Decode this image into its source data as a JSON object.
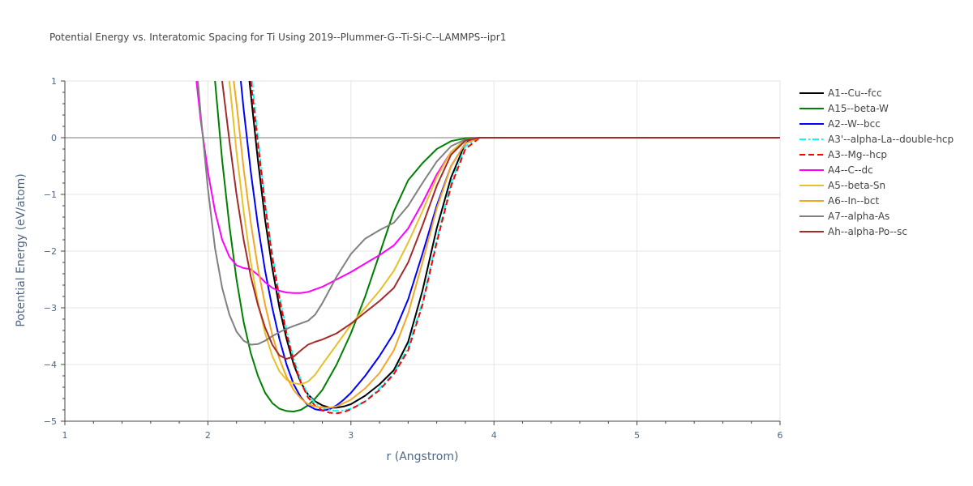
{
  "chart_data": {
    "type": "line",
    "title": "Potential Energy vs. Interatomic Spacing for Ti Using 2019--Plummer-G--Ti-Si-C--LAMMPS--ipr1",
    "xlabel": "r (Angstrom)",
    "ylabel": "Potential Energy (eV/atom)",
    "xlim": [
      1,
      6
    ],
    "ylim": [
      -5,
      1
    ],
    "x_ticks": [
      "1",
      "2",
      "3",
      "4",
      "5",
      "6"
    ],
    "y_ticks": [
      "1",
      "0",
      "−1",
      "−2",
      "−3",
      "−4",
      "−5"
    ],
    "grid": true,
    "legend_position": "right",
    "series": [
      {
        "name": "A1--Cu--fcc",
        "color": "#000000",
        "dash": "solid",
        "x": [
          2.29,
          2.35,
          2.4,
          2.45,
          2.5,
          2.55,
          2.6,
          2.65,
          2.7,
          2.75,
          2.8,
          2.85,
          2.9,
          2.95,
          3.0,
          3.1,
          3.2,
          3.3,
          3.4,
          3.5,
          3.6,
          3.7,
          3.8,
          3.85,
          3.9,
          4.0,
          5.0,
          6.0
        ],
        "y": [
          1.0,
          -0.4,
          -1.45,
          -2.3,
          -3.0,
          -3.55,
          -4.0,
          -4.32,
          -4.53,
          -4.65,
          -4.72,
          -4.76,
          -4.76,
          -4.74,
          -4.7,
          -4.55,
          -4.35,
          -4.1,
          -3.6,
          -2.7,
          -1.6,
          -0.7,
          -0.1,
          -0.02,
          0.0,
          0.0,
          0.0,
          0.0
        ]
      },
      {
        "name": "A15--beta-W",
        "color": "#008000",
        "dash": "solid",
        "x": [
          2.05,
          2.1,
          2.15,
          2.2,
          2.25,
          2.3,
          2.35,
          2.4,
          2.45,
          2.5,
          2.55,
          2.6,
          2.65,
          2.7,
          2.75,
          2.8,
          2.9,
          3.0,
          3.1,
          3.2,
          3.3,
          3.4,
          3.5,
          3.6,
          3.7,
          3.8,
          3.9,
          4.0,
          5.0,
          6.0
        ],
        "y": [
          1.0,
          -0.4,
          -1.55,
          -2.5,
          -3.25,
          -3.8,
          -4.2,
          -4.5,
          -4.68,
          -4.78,
          -4.82,
          -4.83,
          -4.8,
          -4.72,
          -4.6,
          -4.45,
          -4.0,
          -3.45,
          -2.8,
          -2.05,
          -1.3,
          -0.75,
          -0.45,
          -0.2,
          -0.06,
          -0.01,
          0.0,
          0.0,
          0.0,
          0.0
        ]
      },
      {
        "name": "A2--W--bcc",
        "color": "#0000ff",
        "dash": "solid",
        "x": [
          2.23,
          2.25,
          2.3,
          2.35,
          2.4,
          2.45,
          2.5,
          2.55,
          2.6,
          2.65,
          2.7,
          2.75,
          2.8,
          2.85,
          2.9,
          2.95,
          3.0,
          3.1,
          3.2,
          3.3,
          3.4,
          3.5,
          3.6,
          3.7,
          3.8,
          3.9,
          4.0,
          5.0,
          6.0
        ],
        "y": [
          1.0,
          0.5,
          -0.6,
          -1.55,
          -2.35,
          -3.0,
          -3.55,
          -4.0,
          -4.35,
          -4.58,
          -4.72,
          -4.79,
          -4.81,
          -4.79,
          -4.72,
          -4.62,
          -4.5,
          -4.2,
          -3.85,
          -3.45,
          -2.85,
          -2.05,
          -1.2,
          -0.5,
          -0.1,
          0.0,
          0.0,
          0.0,
          0.0
        ]
      },
      {
        "name": "A3'--alpha-La--double-hcp",
        "color": "#00ffff",
        "dash": "dashdot",
        "x": [
          2.31,
          2.35,
          2.4,
          2.45,
          2.5,
          2.55,
          2.6,
          2.65,
          2.7,
          2.75,
          2.8,
          2.85,
          2.9,
          2.95,
          3.0,
          3.1,
          3.2,
          3.3,
          3.4,
          3.5,
          3.6,
          3.7,
          3.8,
          3.9,
          4.0,
          5.0,
          6.0
        ],
        "y": [
          1.0,
          0.0,
          -1.15,
          -2.05,
          -2.8,
          -3.4,
          -3.9,
          -4.28,
          -4.53,
          -4.68,
          -4.76,
          -4.8,
          -4.82,
          -4.81,
          -4.78,
          -4.65,
          -4.42,
          -4.15,
          -3.7,
          -2.9,
          -1.8,
          -0.8,
          -0.15,
          0.0,
          0.0,
          0.0,
          0.0
        ]
      },
      {
        "name": "A3--Mg--hcp",
        "color": "#ff0000",
        "dash": "dash",
        "x": [
          2.3,
          2.35,
          2.4,
          2.45,
          2.5,
          2.55,
          2.6,
          2.65,
          2.7,
          2.75,
          2.8,
          2.85,
          2.9,
          2.95,
          3.0,
          3.1,
          3.2,
          3.3,
          3.4,
          3.5,
          3.6,
          3.7,
          3.8,
          3.9,
          4.0,
          5.0,
          6.0
        ],
        "y": [
          1.0,
          -0.1,
          -1.2,
          -2.1,
          -2.85,
          -3.45,
          -3.95,
          -4.32,
          -4.58,
          -4.73,
          -4.81,
          -4.85,
          -4.86,
          -4.84,
          -4.79,
          -4.65,
          -4.45,
          -4.17,
          -3.75,
          -2.95,
          -1.85,
          -0.85,
          -0.2,
          0.0,
          0.0,
          0.0,
          0.0
        ]
      },
      {
        "name": "A4--C--dc",
        "color": "#ff00ff",
        "dash": "solid",
        "x": [
          1.92,
          1.95,
          2.0,
          2.05,
          2.1,
          2.15,
          2.2,
          2.25,
          2.3,
          2.35,
          2.4,
          2.45,
          2.5,
          2.55,
          2.6,
          2.65,
          2.7,
          2.8,
          2.9,
          3.0,
          3.1,
          3.2,
          3.3,
          3.4,
          3.5,
          3.6,
          3.7,
          3.8,
          3.9,
          4.0,
          5.0,
          6.0
        ],
        "y": [
          1.0,
          0.3,
          -0.6,
          -1.3,
          -1.8,
          -2.1,
          -2.25,
          -2.3,
          -2.32,
          -2.42,
          -2.55,
          -2.65,
          -2.7,
          -2.73,
          -2.74,
          -2.74,
          -2.72,
          -2.63,
          -2.5,
          -2.37,
          -2.22,
          -2.07,
          -1.9,
          -1.6,
          -1.15,
          -0.65,
          -0.25,
          -0.05,
          0.0,
          0.0,
          0.0,
          0.0
        ]
      },
      {
        "name": "A5--beta-Sn",
        "color": "#e6c229",
        "dash": "solid",
        "x": [
          2.15,
          2.2,
          2.25,
          2.3,
          2.35,
          2.4,
          2.45,
          2.5,
          2.55,
          2.6,
          2.65,
          2.7,
          2.75,
          2.8,
          2.9,
          3.0,
          3.1,
          3.2,
          3.3,
          3.4,
          3.5,
          3.6,
          3.7,
          3.8,
          3.9,
          4.0,
          5.0,
          6.0
        ],
        "y": [
          1.0,
          -0.25,
          -1.3,
          -2.2,
          -2.9,
          -3.45,
          -3.85,
          -4.12,
          -4.27,
          -4.33,
          -4.35,
          -4.3,
          -4.18,
          -4.0,
          -3.65,
          -3.3,
          -3.0,
          -2.7,
          -2.35,
          -1.85,
          -1.3,
          -0.7,
          -0.25,
          -0.03,
          0.0,
          0.0,
          0.0,
          0.0
        ]
      },
      {
        "name": "A6--In--bct",
        "color": "#f5a623",
        "dash": "solid",
        "x": [
          2.18,
          2.2,
          2.25,
          2.3,
          2.35,
          2.4,
          2.45,
          2.5,
          2.55,
          2.6,
          2.65,
          2.7,
          2.75,
          2.8,
          2.85,
          2.9,
          3.0,
          3.1,
          3.2,
          3.3,
          3.4,
          3.5,
          3.6,
          3.7,
          3.8,
          3.9,
          4.0,
          5.0,
          6.0
        ],
        "y": [
          1.0,
          0.6,
          -0.55,
          -1.5,
          -2.3,
          -2.95,
          -3.48,
          -3.9,
          -4.22,
          -4.45,
          -4.6,
          -4.7,
          -4.74,
          -4.76,
          -4.76,
          -4.74,
          -4.62,
          -4.42,
          -4.15,
          -3.75,
          -3.1,
          -2.2,
          -1.25,
          -0.5,
          -0.1,
          0.0,
          0.0,
          0.0,
          0.0
        ]
      },
      {
        "name": "A7--alpha-As",
        "color": "#808080",
        "dash": "solid",
        "x": [
          1.93,
          1.95,
          2.0,
          2.05,
          2.1,
          2.15,
          2.2,
          2.25,
          2.3,
          2.35,
          2.4,
          2.45,
          2.5,
          2.55,
          2.6,
          2.7,
          2.75,
          2.8,
          2.9,
          3.0,
          3.1,
          3.2,
          3.3,
          3.4,
          3.5,
          3.6,
          3.7,
          3.8,
          3.9,
          4.0,
          5.0,
          6.0
        ],
        "y": [
          1.0,
          0.4,
          -0.9,
          -1.95,
          -2.65,
          -3.12,
          -3.42,
          -3.58,
          -3.65,
          -3.64,
          -3.58,
          -3.5,
          -3.43,
          -3.37,
          -3.32,
          -3.23,
          -3.12,
          -2.92,
          -2.45,
          -2.05,
          -1.78,
          -1.63,
          -1.5,
          -1.2,
          -0.8,
          -0.42,
          -0.15,
          -0.03,
          0.0,
          0.0,
          0.0,
          0.0
        ]
      },
      {
        "name": "Ah--alpha-Po--sc",
        "color": "#a52a2a",
        "dash": "solid",
        "x": [
          2.1,
          2.15,
          2.2,
          2.25,
          2.3,
          2.35,
          2.4,
          2.45,
          2.5,
          2.55,
          2.6,
          2.65,
          2.7,
          2.75,
          2.8,
          2.9,
          3.0,
          3.1,
          3.2,
          3.3,
          3.4,
          3.5,
          3.6,
          3.7,
          3.8,
          3.9,
          4.0,
          5.0,
          6.0
        ],
        "y": [
          1.0,
          -0.05,
          -1.0,
          -1.8,
          -2.45,
          -2.95,
          -3.35,
          -3.65,
          -3.84,
          -3.9,
          -3.86,
          -3.75,
          -3.65,
          -3.6,
          -3.56,
          -3.45,
          -3.28,
          -3.08,
          -2.88,
          -2.65,
          -2.2,
          -1.55,
          -0.85,
          -0.3,
          -0.05,
          0.0,
          0.0,
          0.0,
          0.0
        ]
      }
    ]
  }
}
